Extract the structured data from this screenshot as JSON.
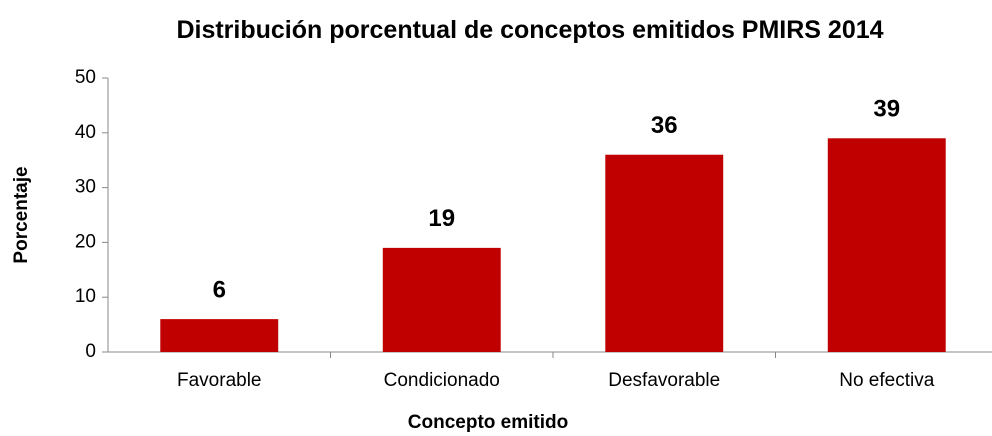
{
  "chart_data": {
    "type": "bar",
    "title": "Distribución porcentual de conceptos emitidos PMIRS 2014",
    "x_label": "Concepto emitido",
    "y_label": "Porcentaje",
    "categories": [
      "Favorable",
      "Condicionado",
      "Desfavorable",
      "No efectiva"
    ],
    "values": [
      6,
      19,
      36,
      39
    ],
    "color": "#c00000",
    "ylim": [
      0,
      50
    ],
    "yticks": [
      0,
      10,
      20,
      30,
      40,
      50
    ],
    "grid": false
  }
}
